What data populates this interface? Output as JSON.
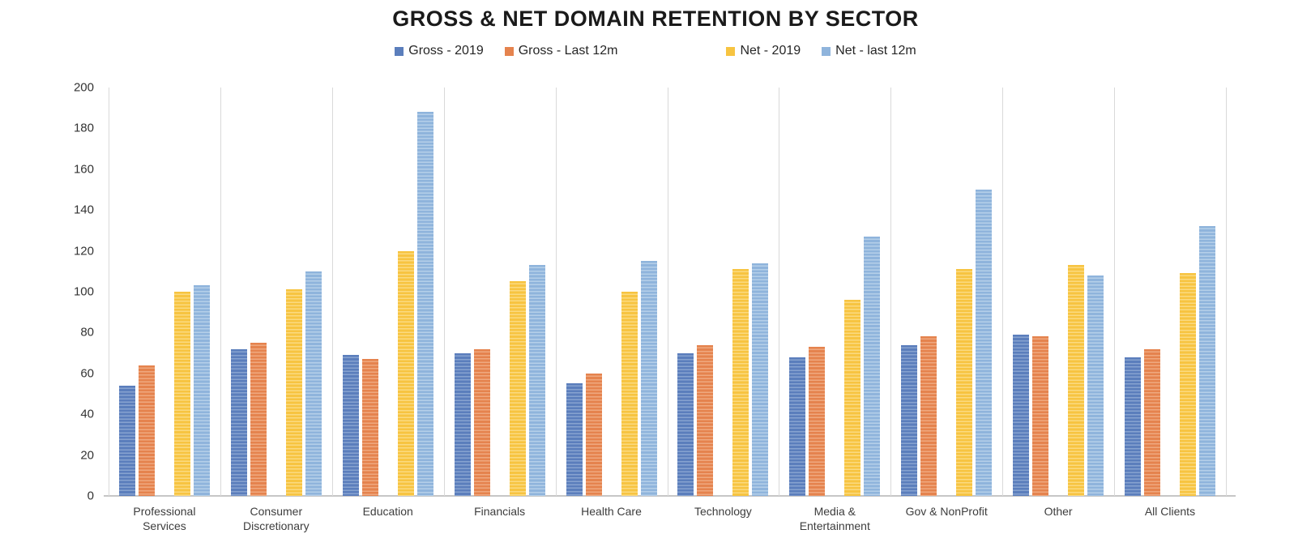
{
  "header": {
    "title": "GROSS & NET DOMAIN RETENTION BY SECTOR"
  },
  "chart_data": {
    "type": "bar",
    "title": "GROSS & NET DOMAIN RETENTION BY SECTOR",
    "legend_position": "top",
    "grid": "vertical category separator lines only",
    "ylim": [
      0,
      200
    ],
    "yticks": [
      0,
      20,
      40,
      60,
      80,
      100,
      120,
      140,
      160,
      180,
      200
    ],
    "categories": [
      "Professional Services",
      "Consumer Discretionary",
      "Education",
      "Financials",
      "Health Care",
      "Technology",
      "Media & Entertainment",
      "Gov & NonProfit",
      "Other",
      "All Clients"
    ],
    "series": [
      {
        "name": "Gross - 2019",
        "color": "#5b7ebc",
        "stripe_color": "#87a3d0",
        "values": [
          54,
          72,
          69,
          70,
          55,
          70,
          68,
          74,
          79,
          68
        ]
      },
      {
        "name": "Gross - Last 12m",
        "color": "#e5834e",
        "stripe_color": "#efa87f",
        "values": [
          64,
          75,
          67,
          72,
          60,
          74,
          73,
          78,
          78,
          72
        ]
      },
      {
        "name": "Net - 2019",
        "color": "#f7c441",
        "stripe_color": "#fbda80",
        "values": [
          100,
          101,
          120,
          105,
          100,
          111,
          96,
          111,
          113,
          109
        ]
      },
      {
        "name": "Net - last 12m",
        "color": "#8fb4dc",
        "stripe_color": "#b5cfe9",
        "values": [
          103,
          110,
          188,
          113,
          115,
          114,
          127,
          150,
          108,
          132
        ]
      }
    ],
    "axis_color": "#c6c6c6",
    "gridline_color": "#d9d9d9",
    "tick_label_color": "#333333"
  }
}
